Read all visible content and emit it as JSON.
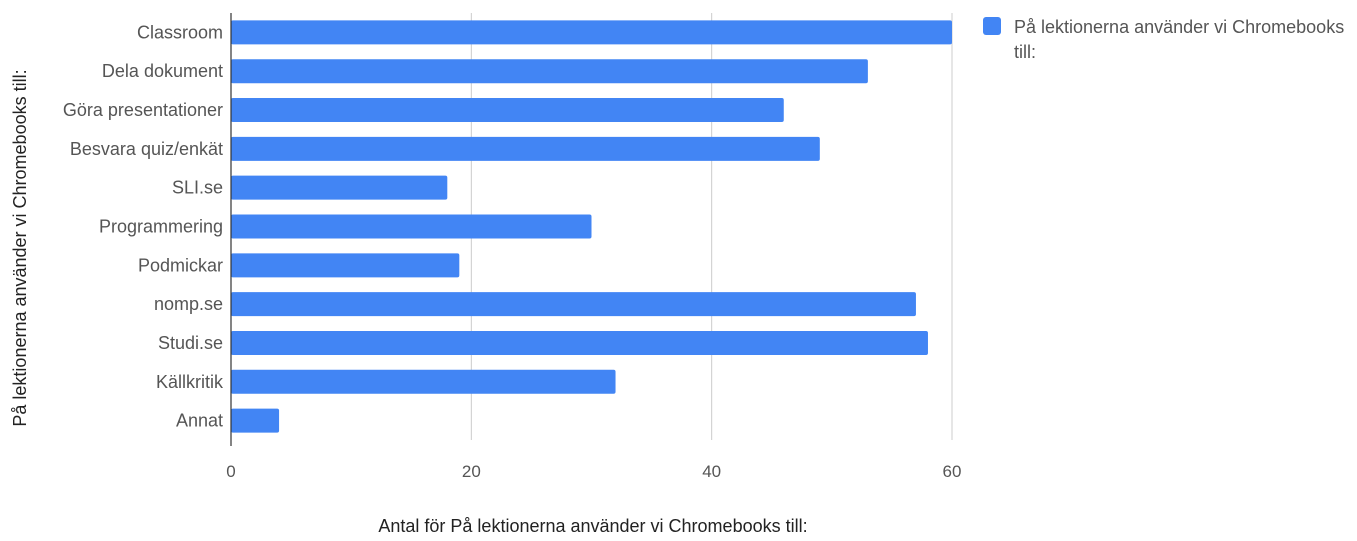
{
  "chart_data": {
    "type": "bar",
    "orientation": "horizontal",
    "categories": [
      "Classroom",
      "Dela dokument",
      "Göra presentationer",
      "Besvara quiz/enkät",
      "SLI.se",
      "Programmering",
      "Podmickar",
      "nomp.se",
      "Studi.se",
      "Källkritik",
      "Annat"
    ],
    "series": [
      {
        "name": "På lektionerna använder vi Chromebooks till:",
        "color": "#4285f4",
        "values": [
          60,
          53,
          46,
          49,
          18,
          30,
          19,
          57,
          58,
          32,
          4
        ]
      }
    ],
    "xlabel": "Antal för På lektionerna använder vi Chromebooks till:",
    "ylabel": "På lektionerna använder vi Chromebooks till:",
    "xlim": [
      0,
      60
    ],
    "xticks": [
      0,
      20,
      40,
      60
    ],
    "grid": true,
    "legend": {
      "position": "right",
      "line1": "På lektionerna använder vi Chromebooks",
      "line2": "till:"
    }
  }
}
